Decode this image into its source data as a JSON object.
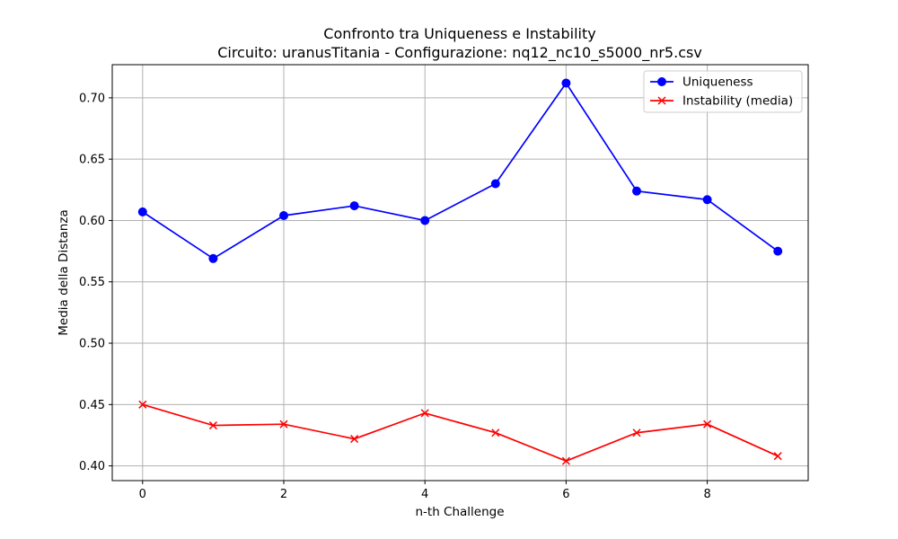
{
  "chart_data": {
    "type": "line",
    "title": "Confronto tra Uniqueness e Instability",
    "subtitle": "Circuito: uranusTitania - Configurazione: nq12_nc10_s5000_nr5.csv",
    "xlabel": "n-th Challenge",
    "ylabel": "Media della Distanza",
    "xlim": [
      -0.43,
      9.43
    ],
    "ylim": [
      0.388,
      0.727
    ],
    "xticks": [
      0,
      2,
      4,
      6,
      8
    ],
    "xtick_labels": [
      "0",
      "2",
      "4",
      "6",
      "8"
    ],
    "yticks": [
      0.4,
      0.45,
      0.5,
      0.55,
      0.6,
      0.65,
      0.7
    ],
    "ytick_labels": [
      "0.40",
      "0.45",
      "0.50",
      "0.55",
      "0.60",
      "0.65",
      "0.70"
    ],
    "grid": true,
    "legend_position": "top-right",
    "x": [
      0,
      1,
      2,
      3,
      4,
      5,
      6,
      7,
      8,
      9
    ],
    "series": [
      {
        "name": "Uniqueness",
        "color": "#0000ff",
        "marker": "circle",
        "values": [
          0.607,
          0.569,
          0.604,
          0.612,
          0.6,
          0.63,
          0.712,
          0.624,
          0.617,
          0.575
        ]
      },
      {
        "name": "Instability (media)",
        "color": "#ff0000",
        "marker": "x",
        "values": [
          0.45,
          0.433,
          0.434,
          0.422,
          0.443,
          0.427,
          0.404,
          0.427,
          0.434,
          0.408
        ]
      }
    ]
  }
}
